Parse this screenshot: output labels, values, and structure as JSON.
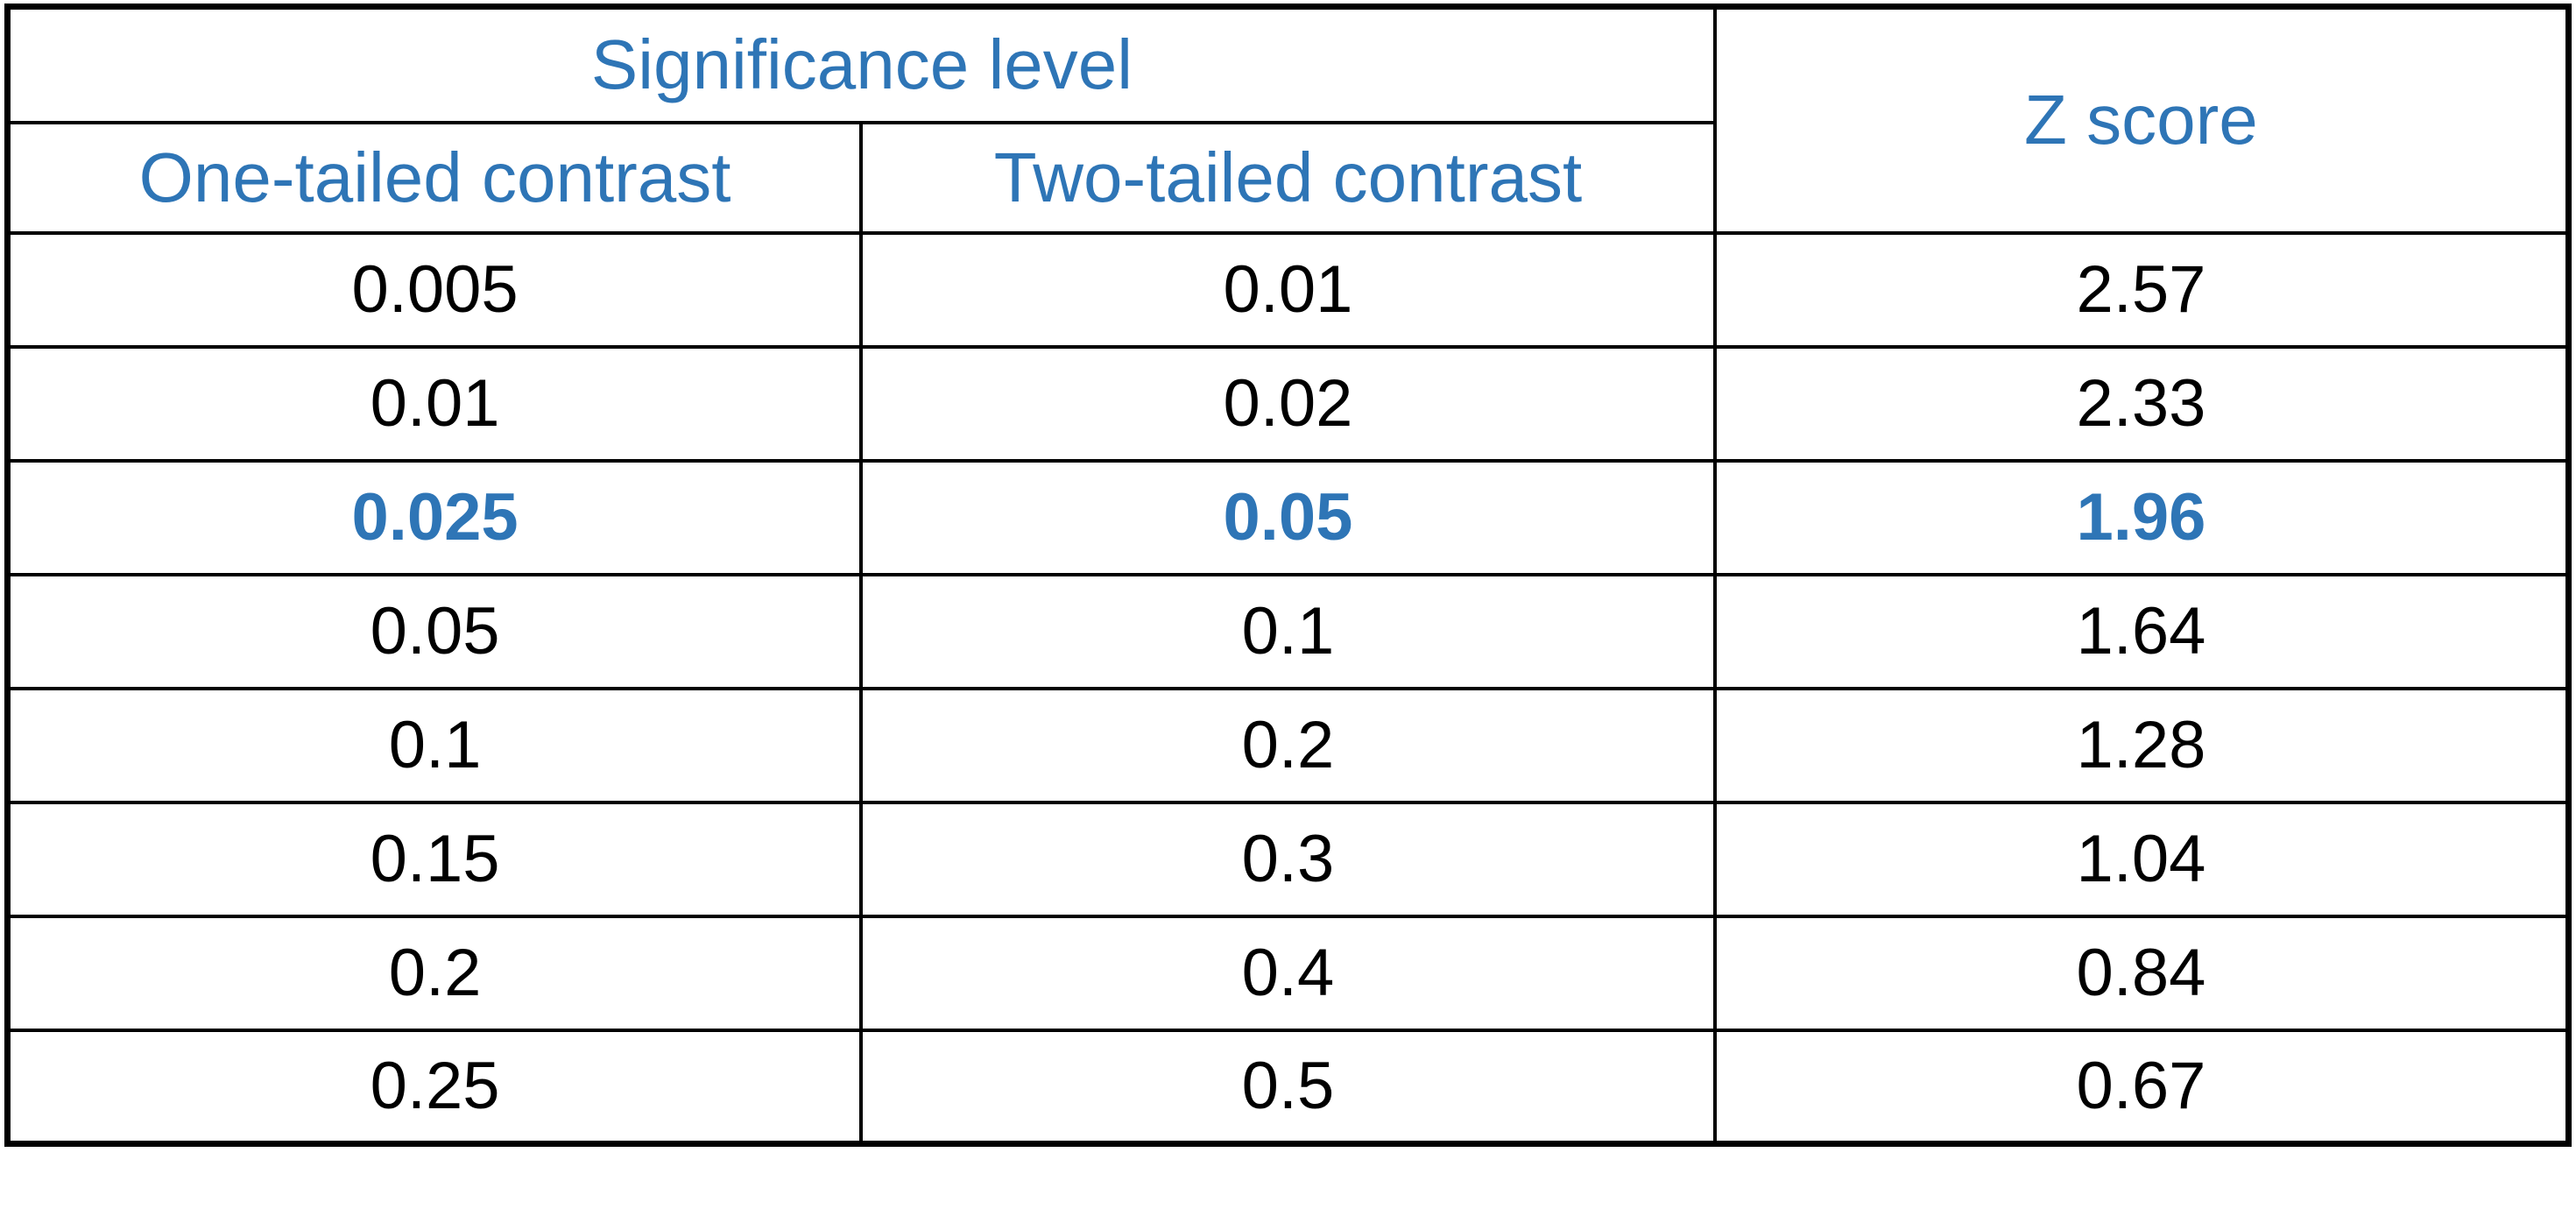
{
  "styles": {
    "accent_color": "#2E75B6",
    "body_text_color": "#000000",
    "border_color": "#000000",
    "background_color": "#FFFFFF"
  },
  "chart_data": {
    "type": "table",
    "column_group": {
      "label": "Significance level",
      "columns": [
        "One-tailed contrast",
        "Two-tailed contrast"
      ]
    },
    "columns": [
      "One-tailed contrast",
      "Two-tailed contrast",
      "Z score"
    ],
    "rows": [
      [
        "0.005",
        "0.01",
        "2.57"
      ],
      [
        "0.01",
        "0.02",
        "2.33"
      ],
      [
        "0.025",
        "0.05",
        "1.96"
      ],
      [
        "0.05",
        "0.1",
        "1.64"
      ],
      [
        "0.1",
        "0.2",
        "1.28"
      ],
      [
        "0.15",
        "0.3",
        "1.04"
      ],
      [
        "0.2",
        "0.4",
        "0.84"
      ],
      [
        "0.25",
        "0.5",
        "0.67"
      ]
    ],
    "highlighted_row_index": 2,
    "highlight_style": "bold blue text",
    "layout": {
      "grid": true,
      "header_text_color": "#2E75B6",
      "body_text_color": "#000000"
    }
  }
}
